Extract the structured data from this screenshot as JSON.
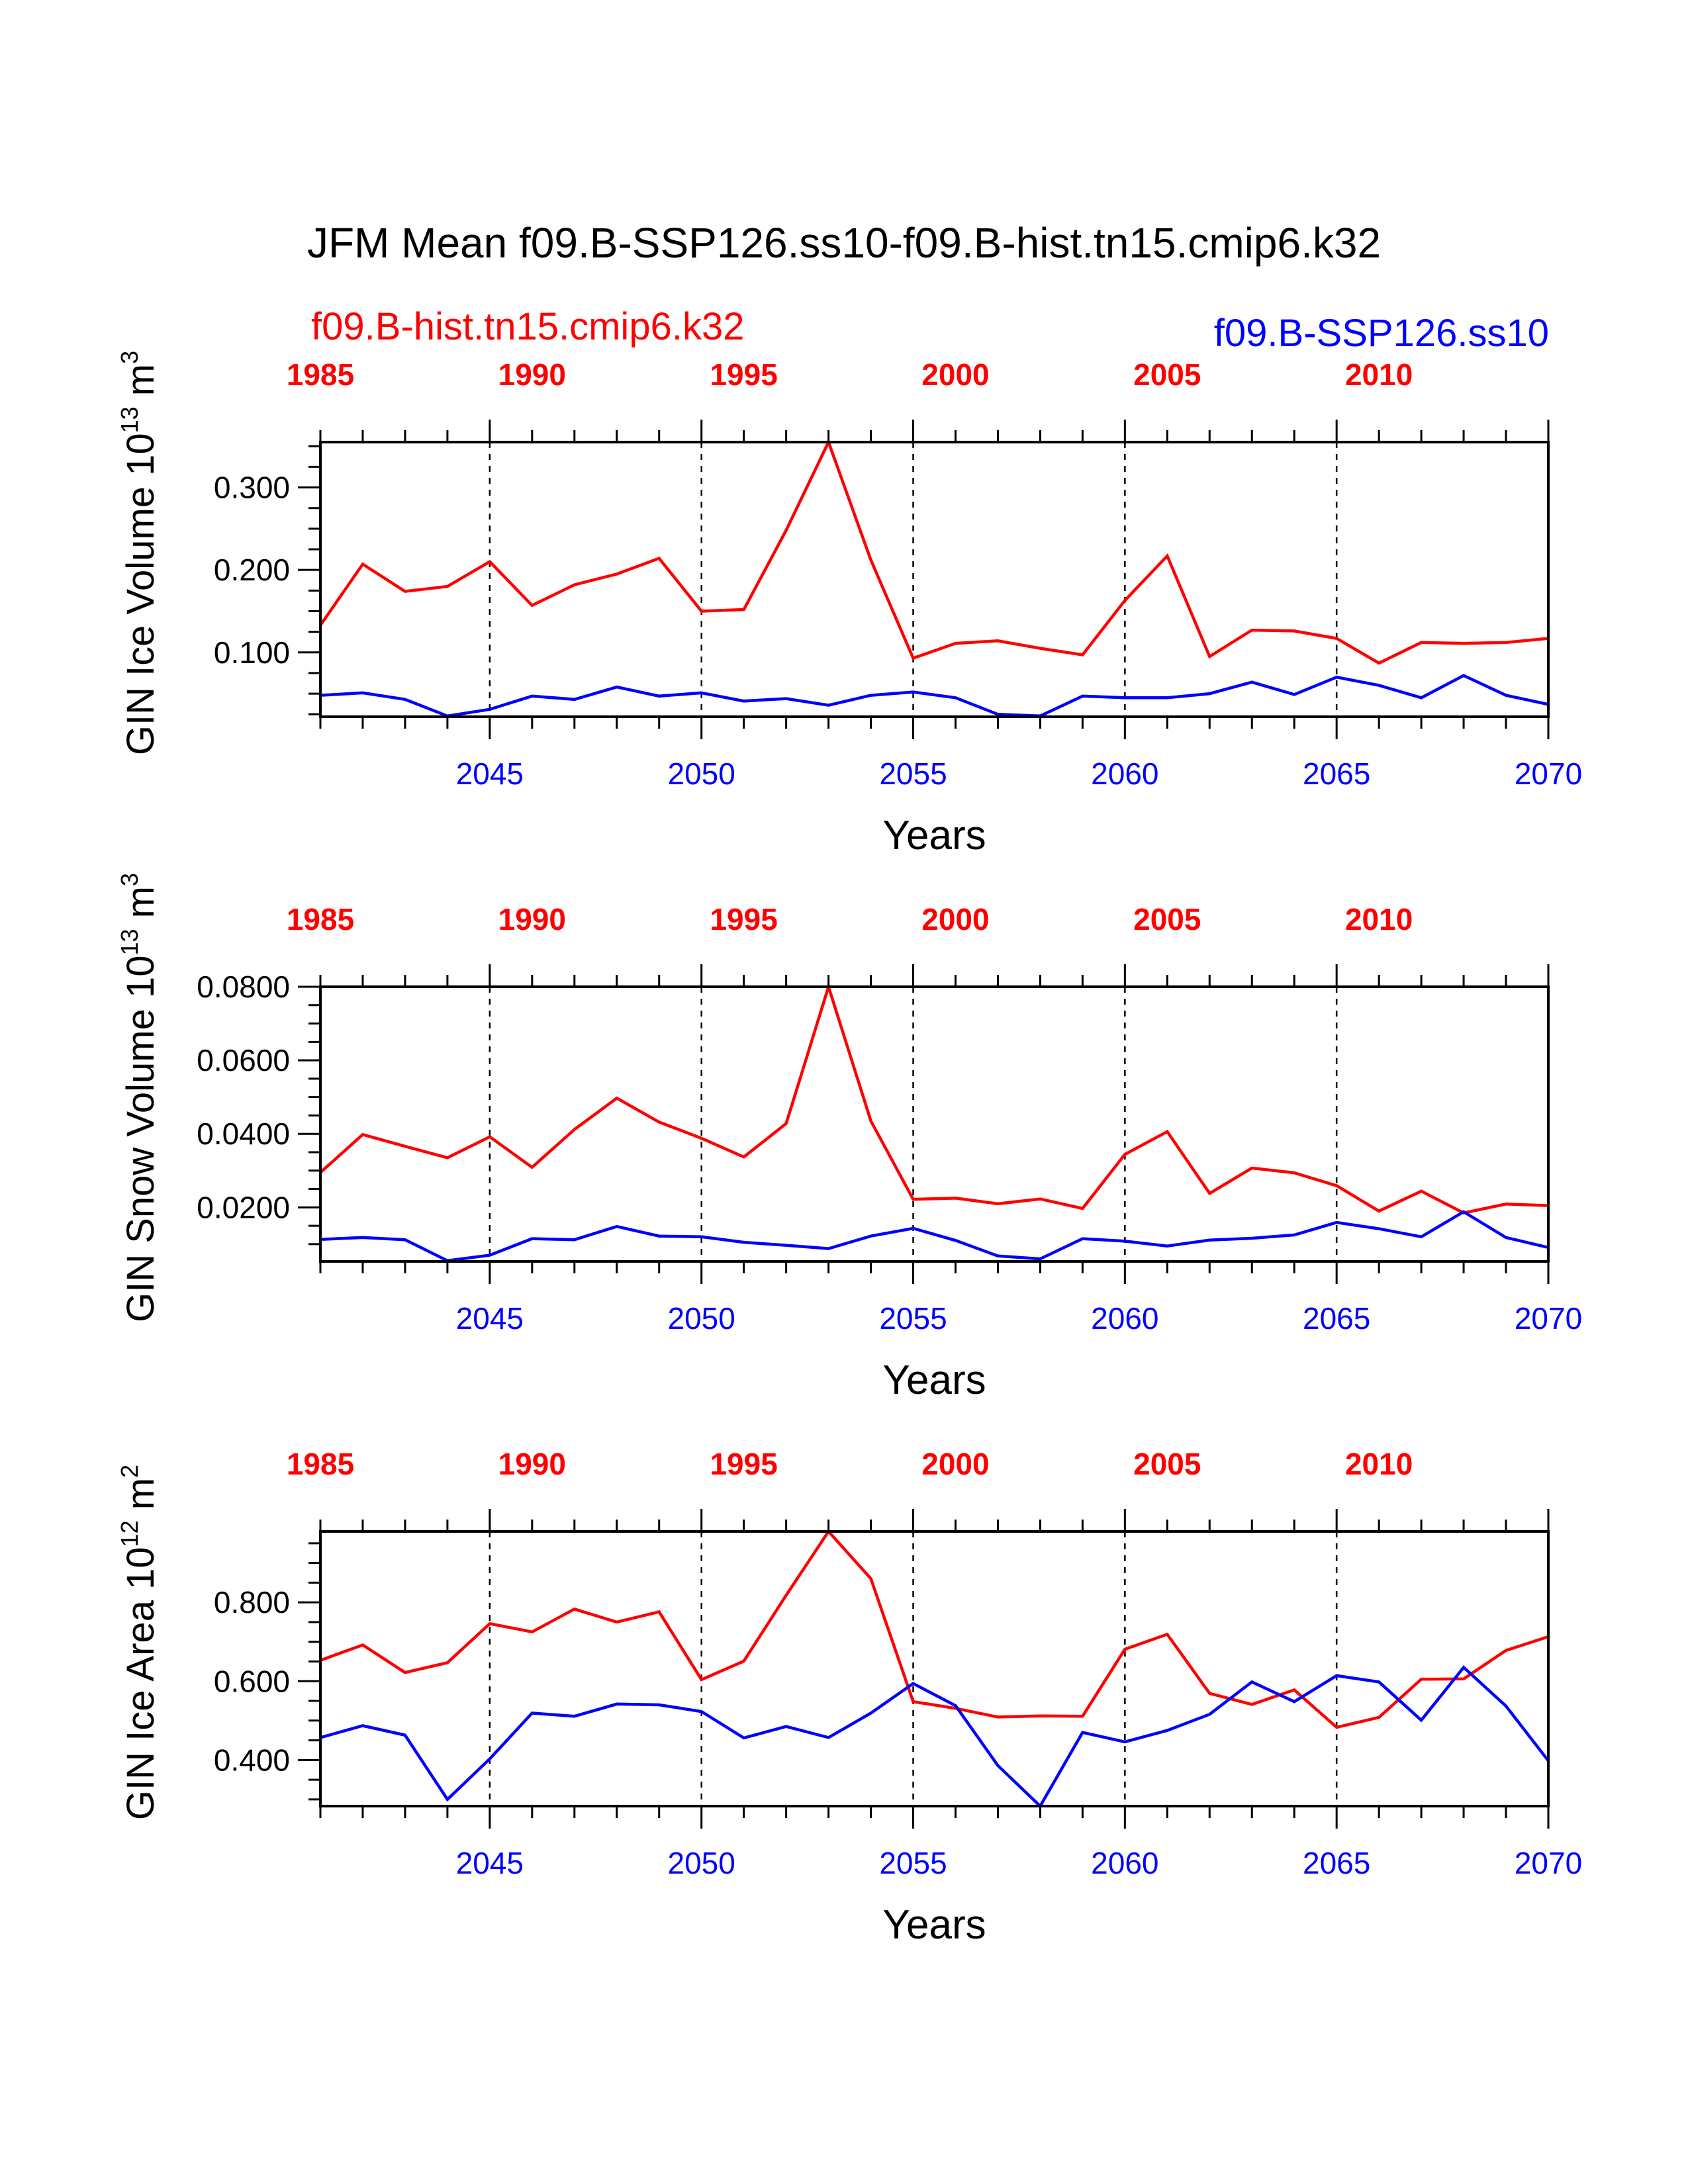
{
  "title": "JFM Mean f09.B-SSP126.ss10-f09.B-hist.tn15.cmip6.k32",
  "legend": {
    "hist_label": "f09.B-hist.tn15.cmip6.k32",
    "ssp_label": "f09.B-SSP126.ss10"
  },
  "colors": {
    "hist": "#ff0000",
    "ssp": "#0000ff",
    "axis": "#000000"
  },
  "chart_data": [
    {
      "type": "line",
      "ylabel": "GIN Ice Volume 10",
      "ylabel_exp": "13",
      "ylabel_unit": " m",
      "ylabel_unit_exp": "3",
      "xlabel": "Years",
      "ylim": [
        0.022,
        0.355
      ],
      "yticks": [
        0.1,
        0.2,
        0.3
      ],
      "ytick_labels": [
        "0.100",
        "0.200",
        "0.300"
      ],
      "x_bottom": {
        "range": [
          2041,
          2070
        ],
        "ticks": [
          2045,
          2050,
          2055,
          2060,
          2065,
          2070
        ],
        "labels": [
          "2045",
          "2050",
          "2055",
          "2060",
          "2065",
          "2070"
        ]
      },
      "x_top": {
        "ticks": [
          1985,
          1990,
          1995,
          2000,
          2005,
          2010
        ],
        "labels": [
          "1985",
          "1990",
          "1995",
          "2000",
          "2005",
          "2010"
        ],
        "offset": 56
      },
      "x": [
        2041,
        2042,
        2043,
        2044,
        2045,
        2046,
        2047,
        2048,
        2049,
        2050,
        2051,
        2052,
        2053,
        2054,
        2055,
        2056,
        2057,
        2058,
        2059,
        2060,
        2061,
        2062,
        2063,
        2064,
        2065,
        2066,
        2067,
        2068,
        2069,
        2070
      ],
      "series": [
        {
          "name": "f09.B-hist.tn15.cmip6.k32",
          "color": "#ff0000",
          "values": [
            0.133,
            0.207,
            0.174,
            0.18,
            0.21,
            0.157,
            0.182,
            0.195,
            0.214,
            0.15,
            0.152,
            0.248,
            0.355,
            0.212,
            0.093,
            0.111,
            0.114,
            0.105,
            0.097,
            0.163,
            0.217,
            0.095,
            0.127,
            0.126,
            0.117,
            0.087,
            0.112,
            0.111,
            0.112,
            0.117
          ]
        },
        {
          "name": "f09.B-SSP126.ss10",
          "color": "#0000ff",
          "values": [
            0.048,
            0.051,
            0.043,
            0.023,
            0.031,
            0.047,
            0.043,
            0.058,
            0.047,
            0.051,
            0.041,
            0.044,
            0.036,
            0.048,
            0.052,
            0.045,
            0.025,
            0.023,
            0.047,
            0.045,
            0.045,
            0.05,
            0.064,
            0.049,
            0.07,
            0.06,
            0.045,
            0.072,
            0.048,
            0.037
          ]
        }
      ]
    },
    {
      "type": "line",
      "ylabel": "GIN Snow Volume 10",
      "ylabel_exp": "13",
      "ylabel_unit": " m",
      "ylabel_unit_exp": "3",
      "xlabel": "Years",
      "ylim": [
        0.0053,
        0.08
      ],
      "yticks": [
        0.02,
        0.04,
        0.06,
        0.08
      ],
      "ytick_labels": [
        "0.0200",
        "0.0400",
        "0.0600",
        "0.0800"
      ],
      "x_bottom": {
        "range": [
          2041,
          2070
        ],
        "ticks": [
          2045,
          2050,
          2055,
          2060,
          2065,
          2070
        ],
        "labels": [
          "2045",
          "2050",
          "2055",
          "2060",
          "2065",
          "2070"
        ]
      },
      "x_top": {
        "ticks": [
          1985,
          1990,
          1995,
          2000,
          2005,
          2010
        ],
        "labels": [
          "1985",
          "1990",
          "1995",
          "2000",
          "2005",
          "2010"
        ],
        "offset": 56
      },
      "x": [
        2041,
        2042,
        2043,
        2044,
        2045,
        2046,
        2047,
        2048,
        2049,
        2050,
        2051,
        2052,
        2053,
        2054,
        2055,
        2056,
        2057,
        2058,
        2059,
        2060,
        2061,
        2062,
        2063,
        2064,
        2065,
        2066,
        2067,
        2068,
        2069,
        2070
      ],
      "series": [
        {
          "name": "f09.B-hist.tn15.cmip6.k32",
          "color": "#ff0000",
          "values": [
            0.0295,
            0.0398,
            0.0366,
            0.0335,
            0.0392,
            0.0309,
            0.0412,
            0.0497,
            0.0432,
            0.0388,
            0.0337,
            0.0428,
            0.08,
            0.0435,
            0.0222,
            0.0225,
            0.021,
            0.0223,
            0.0197,
            0.0344,
            0.0406,
            0.0238,
            0.0307,
            0.0294,
            0.0259,
            0.019,
            0.0244,
            0.0185,
            0.0209,
            0.0205
          ]
        },
        {
          "name": "f09.B-SSP126.ss10",
          "color": "#0000ff",
          "values": [
            0.0113,
            0.0118,
            0.0112,
            0.0055,
            0.007,
            0.0115,
            0.0112,
            0.0148,
            0.0122,
            0.012,
            0.0105,
            0.0097,
            0.0088,
            0.0122,
            0.0143,
            0.011,
            0.0068,
            0.006,
            0.0115,
            0.0108,
            0.0095,
            0.0111,
            0.0116,
            0.0125,
            0.0159,
            0.0142,
            0.012,
            0.0188,
            0.0118,
            0.0091
          ]
        }
      ]
    },
    {
      "type": "line",
      "ylabel": "GIN Ice Area 10",
      "ylabel_exp": "12",
      "ylabel_unit": " m",
      "ylabel_unit_exp": "2",
      "xlabel": "Years",
      "ylim": [
        0.283,
        0.98
      ],
      "yticks": [
        0.4,
        0.6,
        0.8
      ],
      "ytick_labels": [
        "0.400",
        "0.600",
        "0.800"
      ],
      "x_bottom": {
        "range": [
          2041,
          2070
        ],
        "ticks": [
          2045,
          2050,
          2055,
          2060,
          2065,
          2070
        ],
        "labels": [
          "2045",
          "2050",
          "2055",
          "2060",
          "2065",
          "2070"
        ]
      },
      "x_top": {
        "ticks": [
          1985,
          1990,
          1995,
          2000,
          2005,
          2010
        ],
        "labels": [
          "1985",
          "1990",
          "1995",
          "2000",
          "2005",
          "2010"
        ],
        "offset": 56
      },
      "x": [
        2041,
        2042,
        2043,
        2044,
        2045,
        2046,
        2047,
        2048,
        2049,
        2050,
        2051,
        2052,
        2053,
        2054,
        2055,
        2056,
        2057,
        2058,
        2059,
        2060,
        2061,
        2062,
        2063,
        2064,
        2065,
        2066,
        2067,
        2068,
        2069,
        2070
      ],
      "series": [
        {
          "name": "f09.B-hist.tn15.cmip6.k32",
          "color": "#ff0000",
          "values": [
            0.653,
            0.692,
            0.622,
            0.647,
            0.746,
            0.725,
            0.783,
            0.75,
            0.776,
            0.604,
            0.651,
            0.818,
            0.98,
            0.86,
            0.548,
            0.531,
            0.509,
            0.512,
            0.511,
            0.681,
            0.719,
            0.569,
            0.541,
            0.578,
            0.483,
            0.508,
            0.605,
            0.606,
            0.678,
            0.713
          ]
        },
        {
          "name": "f09.B-SSP126.ss10",
          "color": "#0000ff",
          "values": [
            0.457,
            0.487,
            0.463,
            0.3,
            0.403,
            0.519,
            0.511,
            0.542,
            0.54,
            0.523,
            0.456,
            0.485,
            0.457,
            0.519,
            0.594,
            0.538,
            0.386,
            0.283,
            0.47,
            0.446,
            0.475,
            0.516,
            0.598,
            0.548,
            0.614,
            0.598,
            0.501,
            0.635,
            0.537,
            0.398
          ]
        }
      ]
    }
  ]
}
